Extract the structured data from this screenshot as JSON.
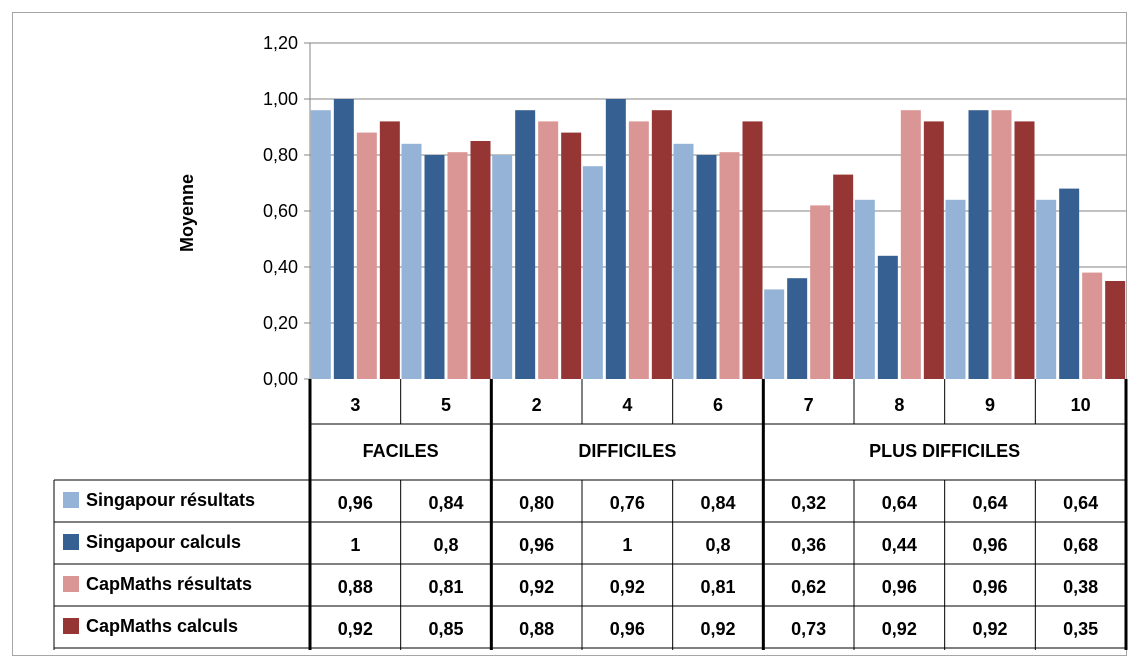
{
  "chart_data": {
    "type": "bar",
    "ylabel": "Moyenne",
    "ylim": [
      0,
      1.2
    ],
    "yticks": [
      "0,00",
      "0,20",
      "0,40",
      "0,60",
      "0,80",
      "1,00",
      "1,20"
    ],
    "grid": true,
    "legend": "table-left",
    "categories": [
      "3",
      "5",
      "2",
      "4",
      "6",
      "7",
      "8",
      "9",
      "10"
    ],
    "groups": [
      {
        "label": "FACILES",
        "count": 2
      },
      {
        "label": "DIFFICILES",
        "count": 3
      },
      {
        "label": "PLUS DIFFICILES",
        "count": 4
      }
    ],
    "series": [
      {
        "name": "Singapour résultats",
        "color": "#95B3D7",
        "values": [
          0.96,
          0.84,
          0.8,
          0.76,
          0.84,
          0.32,
          0.64,
          0.64,
          0.64
        ],
        "labels": [
          "0,96",
          "0,84",
          "0,80",
          "0,76",
          "0,84",
          "0,32",
          "0,64",
          "0,64",
          "0,64"
        ]
      },
      {
        "name": "Singapour calculs",
        "color": "#366092",
        "values": [
          1,
          0.8,
          0.96,
          1,
          0.8,
          0.36,
          0.44,
          0.96,
          0.68
        ],
        "labels": [
          "1",
          "0,8",
          "0,96",
          "1",
          "0,8",
          "0,36",
          "0,44",
          "0,96",
          "0,68"
        ]
      },
      {
        "name": "CapMaths résultats",
        "color": "#DA9694",
        "values": [
          0.88,
          0.81,
          0.92,
          0.92,
          0.81,
          0.62,
          0.96,
          0.96,
          0.38
        ],
        "labels": [
          "0,88",
          "0,81",
          "0,92",
          "0,92",
          "0,81",
          "0,62",
          "0,96",
          "0,96",
          "0,38"
        ]
      },
      {
        "name": "CapMaths calculs",
        "color": "#963634",
        "values": [
          0.92,
          0.85,
          0.88,
          0.96,
          0.92,
          0.73,
          0.92,
          0.92,
          0.35
        ],
        "labels": [
          "0,92",
          "0,85",
          "0,88",
          "0,96",
          "0,92",
          "0,73",
          "0,92",
          "0,92",
          "0,35"
        ]
      }
    ]
  }
}
